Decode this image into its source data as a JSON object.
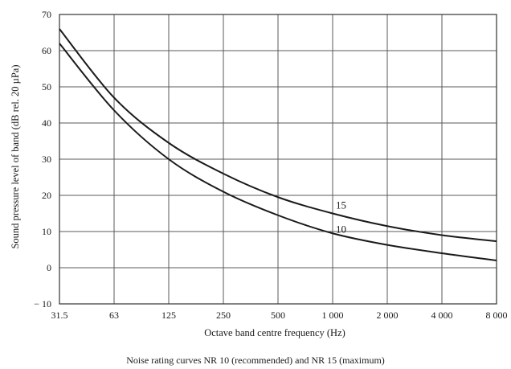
{
  "chart_data": {
    "type": "line",
    "caption": "Noise rating curves NR 10 (recommended) and NR 15 (maximum)",
    "xlabel": "Octave band centre frequency (Hz)",
    "ylabel": "Sound pressure level of band (dB rel. 20 µPa)",
    "x_scale": "log2 (octave bands)",
    "categories": [
      "31.5",
      "63",
      "125",
      "250",
      "500",
      "1 000",
      "2 000",
      "4 000",
      "8 000"
    ],
    "y_tick_labels": [
      "− 10",
      "0",
      "10",
      "20",
      "30",
      "40",
      "50",
      "60",
      "70"
    ],
    "ylim": [
      -10,
      70
    ],
    "grid": true,
    "series": [
      {
        "name": "15",
        "values": [
          66,
          47,
          34.5,
          26,
          19.5,
          15,
          11.5,
          9,
          7.3
        ]
      },
      {
        "name": "10",
        "values": [
          62,
          43.5,
          30,
          21,
          14.5,
          9.5,
          6.3,
          4,
          2
        ]
      }
    ]
  },
  "colors": {
    "curve": "#1a1a1a",
    "grid": "#5a5a5a",
    "background": "#ffffff"
  }
}
